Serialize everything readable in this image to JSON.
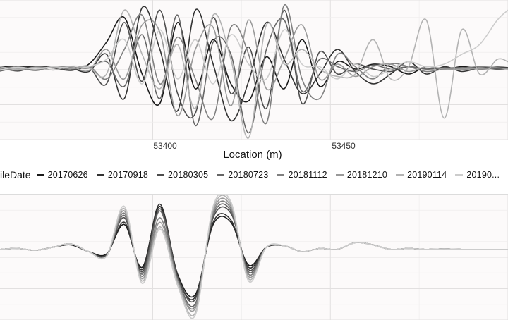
{
  "chart_data": [
    {
      "panel": "top",
      "type": "line",
      "xlabel": "Location (m)",
      "ylabel": "",
      "xlim": [
        53357,
        53500
      ],
      "ylim": [
        -1.35,
        1.35
      ],
      "xticks": [
        53400,
        53450
      ],
      "grid": true,
      "x": [
        53357,
        53362,
        53367,
        53372,
        53377,
        53382,
        53387,
        53392,
        53397,
        53402,
        53407,
        53412,
        53417,
        53422,
        53427,
        53432,
        53437,
        53442,
        53447,
        53452,
        53457,
        53462,
        53467,
        53472,
        53477,
        53482,
        53487,
        53492,
        53497,
        53500
      ],
      "series": [
        {
          "name": "20170626",
          "color": "#1a1a1a",
          "values": [
            0.05,
            0.04,
            0.06,
            0.03,
            -0.02,
            0.1,
            0.55,
            1.05,
            -0.1,
            -0.7,
            0.95,
            -0.4,
            0.6,
            -0.3,
            -0.65,
            0.25,
            -0.4,
            0.6,
            -0.35,
            0.15,
            0.0,
            0.1,
            0.05,
            -0.1,
            0.05,
            0.0,
            0.05,
            0.02,
            0.04,
            0.03
          ]
        },
        {
          "name": "20170918",
          "color": "#333333",
          "values": [
            -0.02,
            0.05,
            0.03,
            0.06,
            0.02,
            -0.05,
            0.3,
            -0.6,
            1.25,
            0.4,
            -0.85,
            1.2,
            0.1,
            -1.05,
            -0.25,
            0.95,
            0.2,
            -0.5,
            -0.1,
            0.4,
            -0.05,
            -0.3,
            -0.1,
            0.15,
            -0.1,
            0.05,
            -0.05,
            0.02,
            0.0,
            0.01
          ]
        },
        {
          "name": "20180305",
          "color": "#4d4d4d",
          "values": [
            0.03,
            -0.04,
            0.05,
            0.02,
            -0.03,
            0.04,
            -0.3,
            0.95,
            -0.25,
            1.2,
            -0.5,
            -0.9,
            1.05,
            -0.5,
            0.45,
            -0.8,
            1.2,
            -0.7,
            0.35,
            -0.1,
            0.1,
            0.0,
            -0.05,
            0.05,
            0.0,
            0.03,
            0.0,
            0.01,
            0.02,
            0.02
          ]
        },
        {
          "name": "20180723",
          "color": "#666666",
          "values": [
            -0.04,
            0.02,
            -0.02,
            0.05,
            0.04,
            0.02,
            0.15,
            -0.35,
            0.7,
            -0.6,
            1.1,
            -1.15,
            0.55,
            0.3,
            -1.3,
            0.4,
            1.0,
            -0.45,
            0.2,
            0.05,
            -0.05,
            0.08,
            0.0,
            0.05,
            0.0,
            0.02,
            0.03,
            0.0,
            0.02,
            0.01
          ]
        },
        {
          "name": "20181112",
          "color": "#808080",
          "values": [
            0.02,
            0.03,
            -0.03,
            0.04,
            0.0,
            0.06,
            -0.2,
            0.4,
            1.1,
            -0.3,
            0.65,
            -0.2,
            -1.0,
            0.85,
            0.3,
            -1.1,
            1.3,
            -0.2,
            -0.6,
            0.3,
            0.05,
            -0.2,
            0.1,
            0.05,
            -0.05,
            0.0,
            0.02,
            0.05,
            0.03,
            0.02
          ]
        },
        {
          "name": "20181210",
          "color": "#999999",
          "values": [
            0.0,
            -0.02,
            0.04,
            0.02,
            0.05,
            -0.03,
            0.4,
            -0.2,
            0.9,
            0.75,
            -0.95,
            0.4,
            0.85,
            -0.75,
            1.0,
            -0.4,
            0.2,
            0.9,
            -0.2,
            0.1,
            -0.15,
            0.05,
            0.1,
            -0.05,
            0.05,
            0.0,
            0.0,
            0.01,
            0.02,
            0.0
          ]
        },
        {
          "name": "20190114",
          "color": "#b3b3b3",
          "values": [
            0.05,
            0.0,
            0.03,
            -0.02,
            0.06,
            0.03,
            -0.1,
            1.2,
            0.3,
            -0.4,
            0.5,
            -0.8,
            1.1,
            0.2,
            -1.4,
            0.9,
            0.1,
            0.4,
            0.0,
            -0.15,
            -0.1,
            0.6,
            -0.2,
            0.05,
            1.0,
            -1.0,
            0.8,
            -0.1,
            0.2,
            0.15
          ]
        },
        {
          "name": "20190...",
          "color": "#cccccc",
          "values": [
            -0.02,
            0.04,
            0.0,
            0.05,
            0.02,
            0.05,
            0.2,
            0.6,
            -0.3,
            0.8,
            -0.2,
            0.6,
            -0.3,
            0.7,
            0.1,
            -0.2,
            0.8,
            0.1,
            0.05,
            -0.2,
            0.1,
            -0.15,
            0.0,
            0.15,
            0.05,
            0.1,
            0.3,
            0.5,
            1.0,
            1.2
          ]
        }
      ]
    },
    {
      "panel": "bottom",
      "type": "line",
      "xlabel": "",
      "ylabel": "",
      "xlim": [
        53357,
        53500
      ],
      "ylim": [
        -1.5,
        1.15
      ],
      "grid": true,
      "x": [
        53357,
        53362,
        53367,
        53372,
        53377,
        53382,
        53387,
        53392,
        53397,
        53402,
        53407,
        53412,
        53417,
        53422,
        53427,
        53432,
        53437,
        53442,
        53447,
        53452,
        53457,
        53462,
        53467,
        53472,
        53477,
        53482,
        53487,
        53492,
        53497,
        53500
      ],
      "series": [
        {
          "name": "20170626",
          "color": "#1a1a1a",
          "values": [
            0.0,
            0.02,
            -0.02,
            0.05,
            0.1,
            -0.05,
            -0.1,
            0.55,
            -0.4,
            0.95,
            -0.55,
            -1.0,
            0.55,
            0.6,
            -0.35,
            0.05,
            0.08,
            -0.05,
            0.02,
            0.0,
            0.15,
            0.1,
            0.0,
            0.02,
            0.0,
            0.01,
            0.0,
            0.0,
            0.0,
            0.0
          ]
        },
        {
          "name": "20170918",
          "color": "#333333",
          "values": [
            0.0,
            0.02,
            -0.02,
            0.05,
            0.12,
            -0.05,
            -0.12,
            0.6,
            -0.45,
            1.0,
            -0.6,
            -1.05,
            0.6,
            0.65,
            -0.4,
            0.05,
            0.08,
            -0.05,
            0.02,
            0.0,
            0.15,
            0.1,
            0.0,
            0.02,
            0.0,
            0.01,
            0.0,
            0.0,
            0.0,
            0.0
          ]
        },
        {
          "name": "20180305",
          "color": "#4d4d4d",
          "values": [
            0.0,
            0.02,
            -0.02,
            0.05,
            0.12,
            -0.05,
            -0.12,
            0.7,
            -0.5,
            0.9,
            -0.6,
            -1.1,
            0.7,
            0.8,
            -0.45,
            0.05,
            0.08,
            -0.05,
            0.02,
            0.0,
            0.15,
            0.1,
            0.0,
            0.02,
            0.0,
            0.01,
            0.0,
            0.0,
            0.0,
            0.0
          ]
        },
        {
          "name": "20180723",
          "color": "#666666",
          "values": [
            0.0,
            0.02,
            -0.02,
            0.05,
            0.12,
            -0.05,
            -0.15,
            0.75,
            -0.55,
            0.85,
            -0.65,
            -1.2,
            0.75,
            0.85,
            -0.5,
            0.05,
            0.08,
            -0.05,
            0.02,
            0.0,
            0.15,
            0.1,
            0.0,
            0.02,
            0.0,
            0.01,
            0.0,
            0.0,
            0.0,
            0.0
          ]
        },
        {
          "name": "20181112",
          "color": "#808080",
          "values": [
            0.0,
            0.02,
            -0.02,
            0.05,
            0.12,
            -0.05,
            -0.15,
            0.8,
            -0.6,
            0.7,
            -0.7,
            -1.25,
            0.8,
            0.9,
            -0.55,
            0.05,
            0.08,
            -0.05,
            0.02,
            0.0,
            0.15,
            0.1,
            0.0,
            0.02,
            0.0,
            0.01,
            0.0,
            0.0,
            0.0,
            0.0
          ]
        },
        {
          "name": "20181210",
          "color": "#999999",
          "values": [
            0.0,
            0.02,
            -0.02,
            0.05,
            0.12,
            -0.05,
            -0.15,
            0.85,
            -0.65,
            0.6,
            -0.7,
            -1.3,
            0.85,
            0.95,
            -0.6,
            0.05,
            0.08,
            -0.05,
            0.02,
            0.0,
            0.15,
            0.1,
            0.0,
            0.02,
            0.0,
            0.01,
            0.0,
            0.0,
            0.0,
            0.0
          ]
        },
        {
          "name": "20190114",
          "color": "#b3b3b3",
          "values": [
            0.0,
            0.02,
            -0.02,
            0.05,
            0.12,
            -0.05,
            -0.15,
            0.9,
            -0.7,
            0.5,
            -0.75,
            -1.4,
            0.9,
            1.0,
            -0.65,
            0.05,
            0.08,
            -0.05,
            0.02,
            0.0,
            0.15,
            0.1,
            0.0,
            0.02,
            0.0,
            0.01,
            0.0,
            0.0,
            0.0,
            0.0
          ]
        },
        {
          "name": "20190...",
          "color": "#cccccc",
          "values": [
            0.0,
            0.02,
            -0.02,
            0.05,
            0.12,
            -0.05,
            -0.15,
            0.95,
            -0.75,
            0.45,
            -0.8,
            -1.45,
            0.95,
            1.05,
            -0.7,
            0.05,
            0.08,
            -0.05,
            0.02,
            0.0,
            0.15,
            0.1,
            0.0,
            0.02,
            0.0,
            0.01,
            0.0,
            0.0,
            0.0,
            0.0
          ]
        }
      ]
    }
  ],
  "legend": {
    "title": "eryFileDate",
    "items": [
      "20170626",
      "20170918",
      "20180305",
      "20180723",
      "20181112",
      "20181210",
      "20190114",
      "20190..."
    ],
    "colors": [
      "#1a1a1a",
      "#333333",
      "#4d4d4d",
      "#666666",
      "#808080",
      "#999999",
      "#b3b3b3",
      "#cccccc"
    ]
  }
}
